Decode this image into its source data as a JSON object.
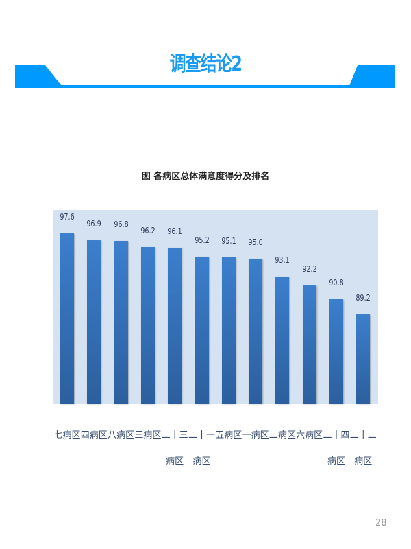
{
  "slide": {
    "title": "调查结论2",
    "page_number": "28",
    "accent_color": "#0099ff"
  },
  "chart_data": {
    "type": "bar",
    "title": "图  各病区总体满意度得分及排名",
    "categories": [
      "七病区",
      "四病区",
      "八病区",
      "三病区",
      "二十三病区",
      "二十一病区",
      "五病区",
      "一病区",
      "二病区",
      "六病区",
      "二十四病区",
      "二十二病区"
    ],
    "values": [
      97.6,
      96.9,
      96.8,
      96.2,
      96.1,
      95.2,
      95.1,
      95.0,
      93.1,
      92.2,
      90.8,
      89.2
    ],
    "data_labels": [
      "97.6",
      "96.9",
      "96.8",
      "96.2",
      "96.1",
      "95.2",
      "95.1",
      "95.0",
      "93.1",
      "92.2",
      "90.8",
      "89.2"
    ],
    "xlabel": "",
    "ylabel": "",
    "ylim": [
      80,
      100
    ],
    "y_axis_visible": false,
    "grid": false,
    "bar_color": "#3a7acb",
    "plot_background": "#d4e2f2"
  }
}
